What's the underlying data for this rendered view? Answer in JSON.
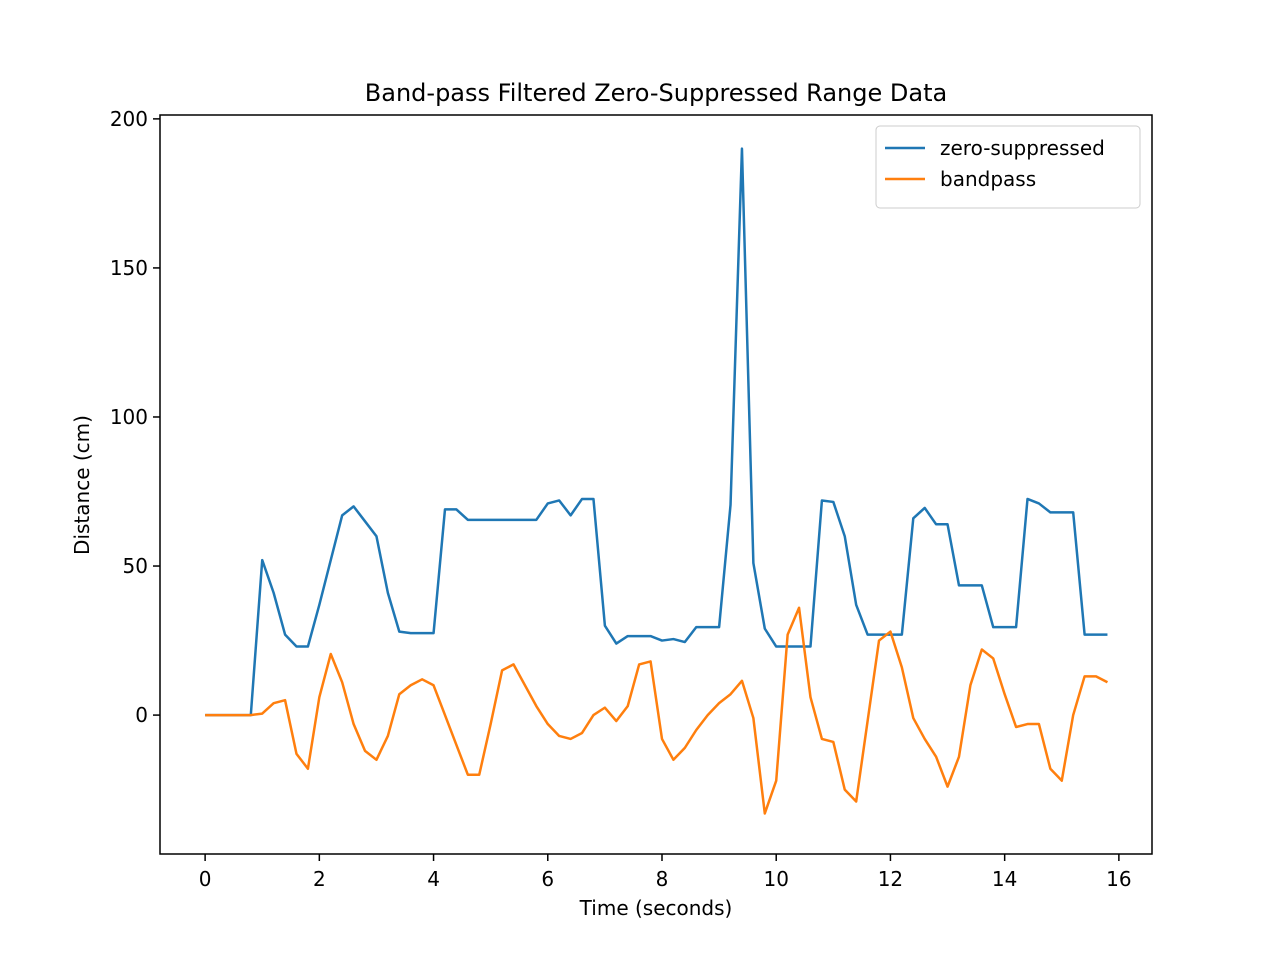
{
  "chart_data": {
    "type": "line",
    "title": "Band-pass Filtered Zero-Suppressed Range Data",
    "xlabel": "Time (seconds)",
    "ylabel": "Distance (cm)",
    "x": [
      0,
      0.2,
      0.4,
      0.6,
      0.8,
      1.0,
      1.2,
      1.4,
      1.6,
      1.8,
      2.0,
      2.2,
      2.4,
      2.6,
      2.8,
      3.0,
      3.2,
      3.4,
      3.6,
      3.8,
      4.0,
      4.2,
      4.4,
      4.6,
      4.8,
      5.0,
      5.2,
      5.4,
      5.6,
      5.8,
      6.0,
      6.2,
      6.4,
      6.6,
      6.8,
      7.0,
      7.2,
      7.4,
      7.6,
      7.8,
      8.0,
      8.2,
      8.4,
      8.6,
      8.8,
      9.0,
      9.2,
      9.4,
      9.6,
      9.8,
      10.0,
      10.2,
      10.4,
      10.6,
      10.8,
      11.0,
      11.2,
      11.4,
      11.6,
      11.8,
      12.0,
      12.2,
      12.4,
      12.6,
      12.8,
      13.0,
      13.2,
      13.4,
      13.6,
      13.8,
      14.0,
      14.2,
      14.4,
      14.6,
      14.8,
      15.0,
      15.2,
      15.4,
      15.6,
      15.8
    ],
    "series": [
      {
        "name": "zero-suppressed",
        "color": "#1f77b4",
        "values": [
          0,
          0,
          0,
          0,
          0,
          52,
          41,
          27,
          23,
          23,
          37,
          52,
          67,
          70,
          65,
          60,
          41,
          28,
          27.5,
          27.5,
          27.5,
          69,
          69,
          65.5,
          65.5,
          65.5,
          65.5,
          65.5,
          65.5,
          65.5,
          71,
          72,
          67,
          72.5,
          72.5,
          30,
          24,
          26.5,
          26.5,
          26.5,
          25,
          25.5,
          24.5,
          29.5,
          29.5,
          29.5,
          70.5,
          190,
          51,
          29,
          23,
          23,
          23,
          23,
          72,
          71.5,
          60,
          37,
          27,
          27,
          27,
          27,
          66,
          69.5,
          64,
          64,
          43.5,
          43.5,
          43.5,
          29.5,
          29.5,
          29.5,
          72.5,
          71,
          68,
          68,
          68,
          27,
          27,
          27
        ]
      },
      {
        "name": "bandpass",
        "color": "#ff7f0e",
        "values": [
          0,
          0,
          0,
          0,
          0,
          0.5,
          4,
          5,
          -13,
          -18,
          6,
          20.5,
          11,
          -3,
          -12,
          -15,
          -7,
          7,
          10,
          12,
          10,
          0,
          -10,
          -20,
          -20,
          -3,
          15,
          17,
          10,
          3,
          -3,
          -7,
          -8,
          -6,
          0,
          2.5,
          -2,
          3,
          17,
          18,
          -8,
          -15,
          -11,
          -5,
          0,
          4,
          7,
          11.5,
          -1,
          -33,
          -22,
          27,
          36,
          6,
          -8,
          -9,
          -25,
          -29,
          -2,
          25,
          28,
          16,
          -1,
          -8,
          -14,
          -24,
          -14,
          10,
          22,
          19,
          7,
          -4,
          -3,
          -3,
          -18,
          -22,
          0,
          13,
          13,
          11
        ]
      }
    ],
    "xlim": [
      -0.79,
      16.58
    ],
    "ylim": [
      -46.6,
      201.3
    ],
    "xticks": [
      0,
      2,
      4,
      6,
      8,
      10,
      12,
      14,
      16
    ],
    "yticks": [
      0,
      50,
      100,
      150,
      200
    ],
    "legend": "upper right"
  }
}
